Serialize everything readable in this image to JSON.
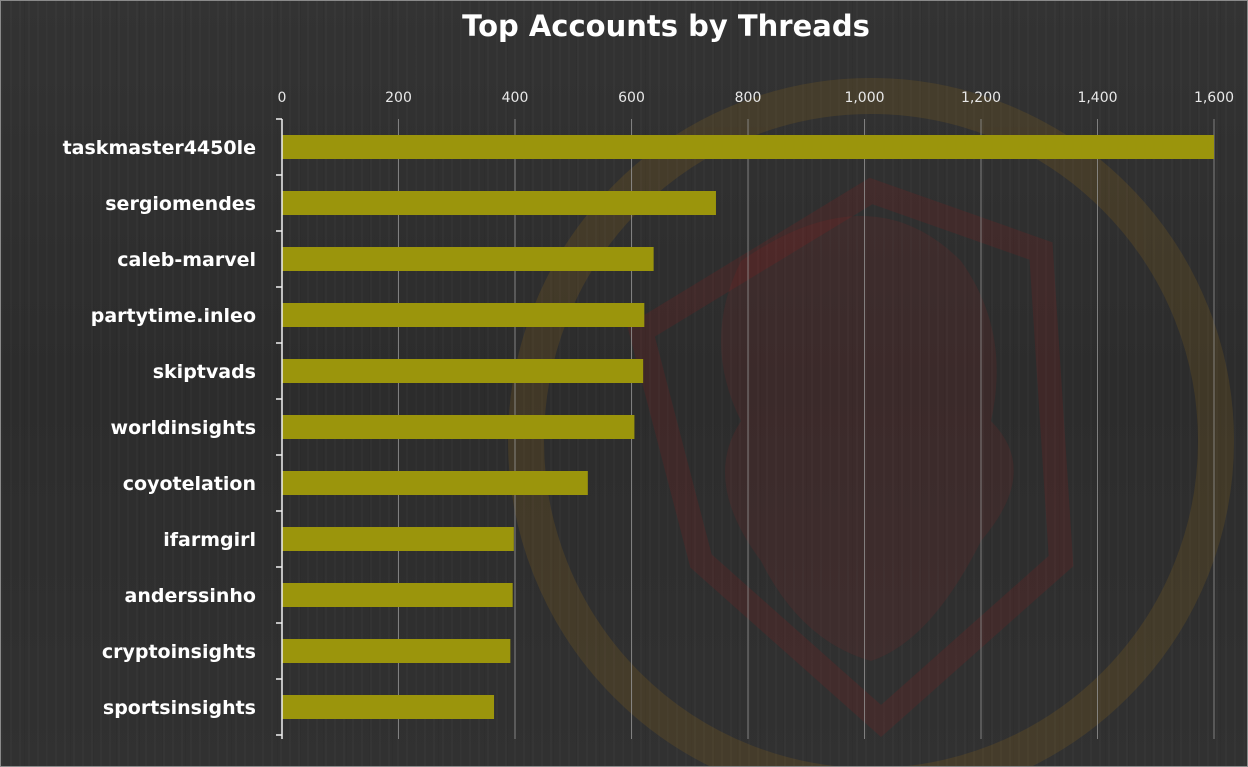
{
  "chart_data": {
    "type": "bar",
    "orientation": "horizontal",
    "title": "Top Accounts by Threads",
    "xlabel": "",
    "ylabel": "",
    "xlim": [
      0,
      1600
    ],
    "ticks": [
      0,
      200,
      400,
      600,
      800,
      1000,
      1200,
      1400,
      1600
    ],
    "tick_labels": [
      "0",
      "200",
      "400",
      "600",
      "800",
      "1,000",
      "1,200",
      "1,400",
      "1,600"
    ],
    "grid": true,
    "axis_position": "top",
    "categories": [
      "taskmaster4450le",
      "sergiomendes",
      "caleb-marvel",
      "partytime.inleo",
      "skiptvads",
      "worldinsights",
      "coyotelation",
      "ifarmgirl",
      "anderssinho",
      "cryptoinsights",
      "sportsinsights"
    ],
    "values": [
      1600,
      745,
      638,
      622,
      620,
      605,
      525,
      398,
      396,
      392,
      364
    ],
    "bar_color": "#9b950c",
    "background_color": "#2f2f2f",
    "watermark": "lion-shield-logo"
  }
}
